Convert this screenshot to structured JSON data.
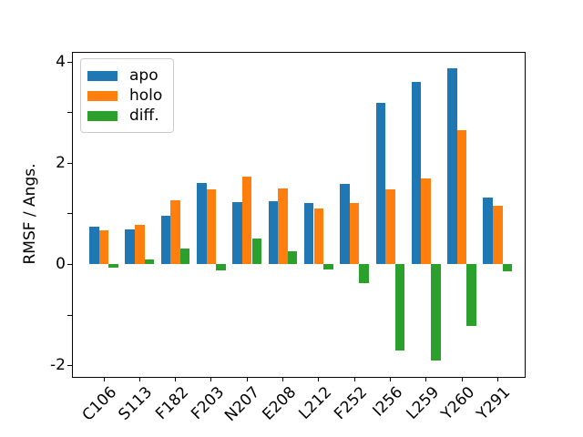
{
  "chart_data": {
    "type": "bar",
    "title": "",
    "xlabel": "",
    "ylabel": "RMSF / Angs.",
    "categories": [
      "C106",
      "S113",
      "F182",
      "F203",
      "N207",
      "E208",
      "L212",
      "F252",
      "I256",
      "L259",
      "Y260",
      "Y291"
    ],
    "series": [
      {
        "name": "apo",
        "color": "#1f77b4",
        "values": [
          0.73,
          0.68,
          0.95,
          1.6,
          1.22,
          1.24,
          1.2,
          1.58,
          3.18,
          3.6,
          3.87,
          1.31
        ]
      },
      {
        "name": "holo",
        "color": "#ff7f0e",
        "values": [
          0.66,
          0.77,
          1.26,
          1.48,
          1.72,
          1.49,
          1.09,
          1.21,
          1.47,
          1.7,
          2.65,
          1.16
        ]
      },
      {
        "name": "diff.",
        "color": "#2ca02c",
        "values": [
          -0.07,
          0.09,
          0.31,
          -0.12,
          0.5,
          0.25,
          -0.11,
          -0.37,
          -1.71,
          -1.9,
          -1.22,
          -0.15
        ]
      }
    ],
    "ylim": [
      -2.23,
      4.17
    ],
    "yticks_labeled": [
      -2,
      0,
      2,
      4
    ],
    "yticks_unlabeled": [
      -1,
      1,
      3
    ],
    "ytick_label_texts": [
      "-2",
      "0",
      "2",
      "4"
    ],
    "x_tick_rotation_deg": 45,
    "grid": false,
    "background": "#ffffff",
    "spine_color": "#000000",
    "legend": {
      "position": "upper left",
      "entries": [
        "apo",
        "holo",
        "diff."
      ]
    }
  }
}
